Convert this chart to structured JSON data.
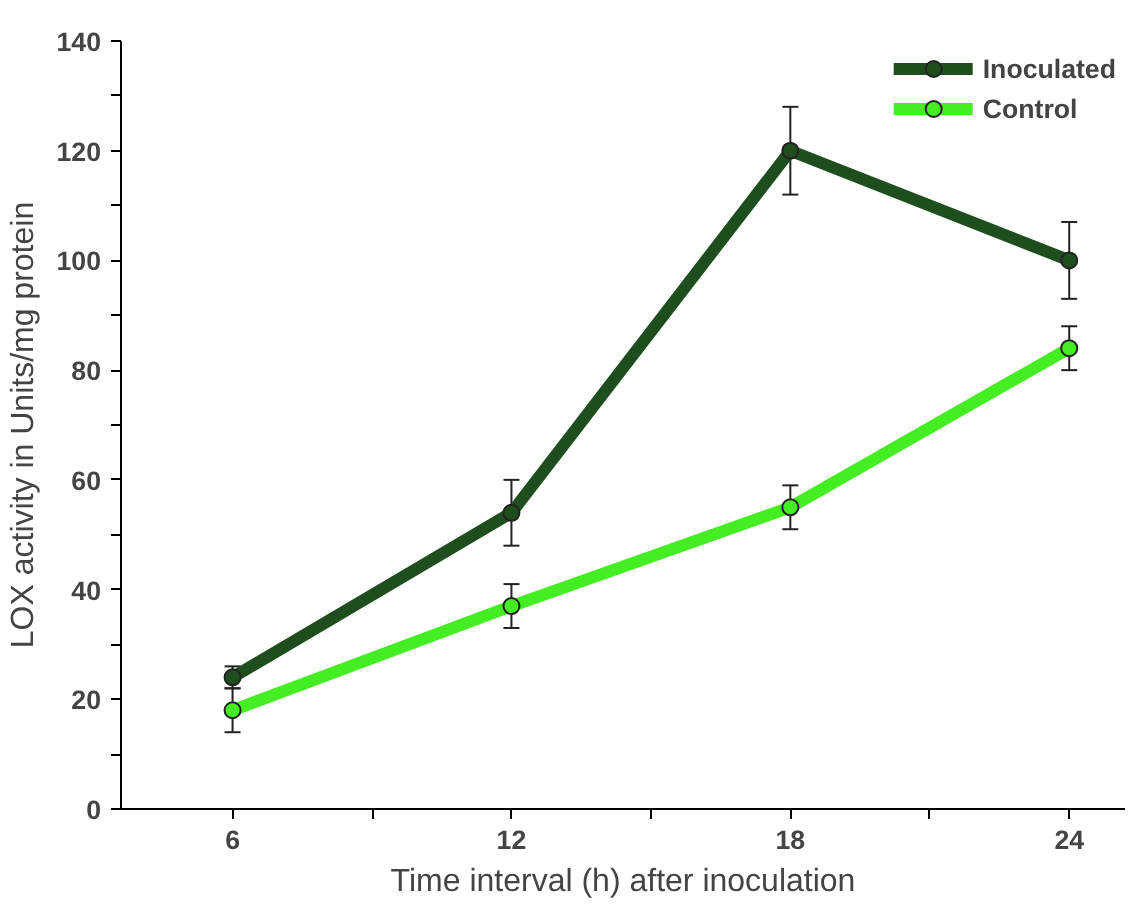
{
  "chart_data": {
    "type": "line",
    "xlabel": "Time interval (h) after inoculation",
    "ylabel": "LOX activity in Units/mg protein",
    "x": [
      6,
      12,
      18,
      24
    ],
    "series": [
      {
        "name": "Inoculated",
        "color": "#1e4d1e",
        "values": [
          24,
          54,
          120,
          100
        ],
        "errors": [
          2,
          6,
          8,
          7
        ]
      },
      {
        "name": "Control",
        "color": "#44ee22",
        "values": [
          18,
          37,
          55,
          84
        ],
        "errors": [
          4,
          4,
          4,
          4
        ]
      }
    ],
    "xlim": [
      3.6,
      25.2
    ],
    "xticks": [
      6,
      {
        "value": 9,
        "label": null
      },
      12,
      {
        "value": 15,
        "label": null
      },
      18,
      {
        "value": 21,
        "label": null
      },
      24
    ],
    "ylim": [
      0,
      140
    ],
    "yticks": [
      0,
      {
        "value": 10,
        "label": null
      },
      20,
      {
        "value": 30,
        "label": null
      },
      40,
      {
        "value": 50,
        "label": null
      },
      60,
      {
        "value": 70,
        "label": null
      },
      80,
      {
        "value": 90,
        "label": null
      },
      100,
      {
        "value": 110,
        "label": null
      },
      120,
      {
        "value": 130,
        "label": null
      },
      140
    ],
    "grid": false,
    "legend": "top right",
    "marker": "circle",
    "line_style": "solid"
  }
}
